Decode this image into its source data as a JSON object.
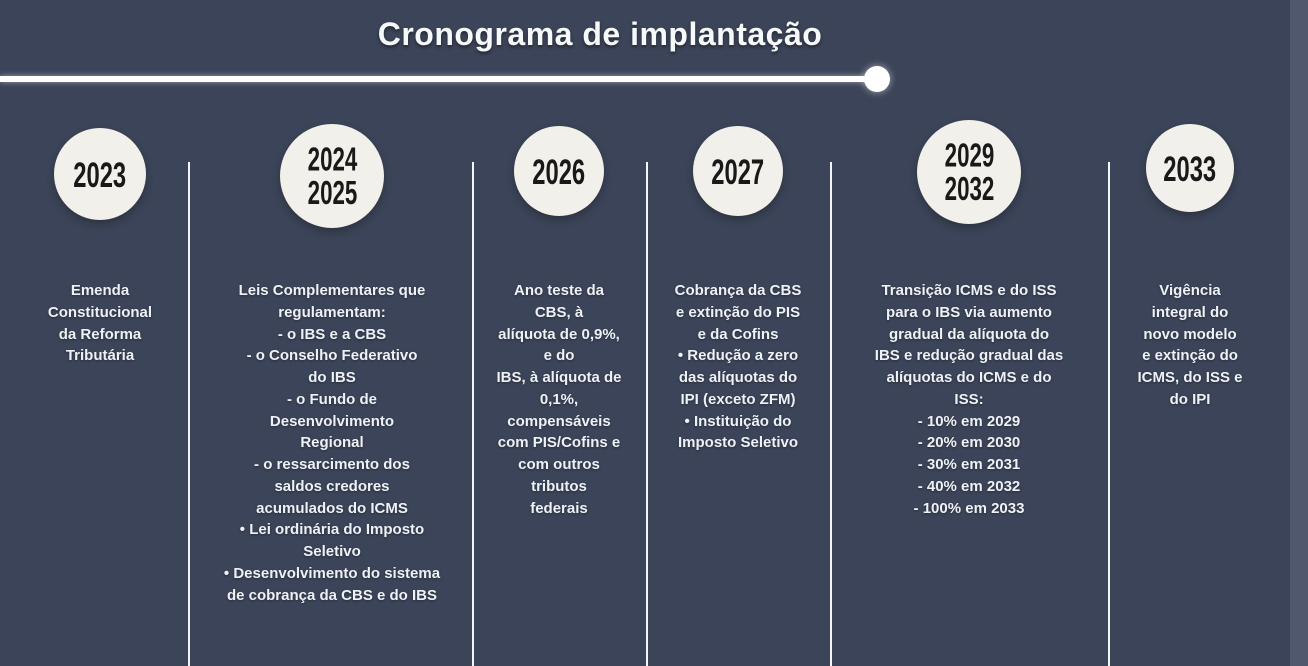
{
  "title": "Cronograma de implantação",
  "colors": {
    "background": "#3b4458",
    "circle_fill": "#f2f0ea",
    "year_text": "#191919",
    "body_text": "#eef1f6",
    "axis_line": "#ffffff"
  },
  "columns": [
    {
      "year": "2023",
      "body": "Emenda\nConstitucional\nda Reforma\nTributária"
    },
    {
      "year": "2024\n2025",
      "body": "Leis Complementares que\nregulamentam:\n- o IBS e a CBS\n- o Conselho Federativo\ndo IBS\n- o Fundo de\nDesenvolvimento\nRegional\n- o ressarcimento dos\nsaldos credores\nacumulados do ICMS\n• Lei ordinária do Imposto\nSeletivo\n• Desenvolvimento do sistema\nde cobrança da CBS e do IBS"
    },
    {
      "year": "2026",
      "body": "Ano teste da\nCBS, à\nalíquota de 0,9%,\ne do\nIBS, à alíquota de\n0,1%,\ncompensáveis\ncom PIS/Cofins e\ncom outros\ntributos\nfederais"
    },
    {
      "year": "2027",
      "body": "Cobrança da CBS\ne extinção do PIS\ne da Cofins\n• Redução a zero\ndas alíquotas do\nIPI (exceto ZFM)\n• Instituição do\nImposto Seletivo"
    },
    {
      "year": "2029\n2032",
      "body": "Transição ICMS e do ISS\npara o IBS via aumento\ngradual da alíquota do\nIBS e redução gradual das\nalíquotas do ICMS e do\nISS:\n- 10% em 2029\n- 20% em 2030\n- 30% em 2031\n- 40% em 2032\n- 100% em 2033"
    },
    {
      "year": "2033",
      "body": "Vigência\nintegral do\nnovo modelo\ne extinção do\nICMS, do ISS e\ndo IPI"
    }
  ]
}
